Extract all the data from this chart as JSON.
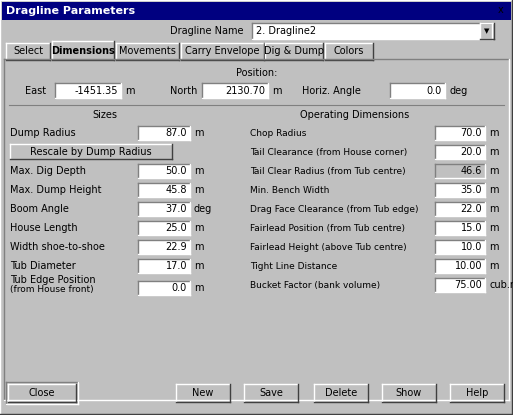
{
  "title": "Dragline Parameters",
  "title_bg": "#000080",
  "title_fg": "#ffffff",
  "bg_color": "#c0c0c0",
  "tab_active": "Dimensions",
  "tabs": [
    "Select",
    "Dimensions",
    "Movements",
    "Carry Envelope",
    "Dig & Dump",
    "Colors"
  ],
  "dragline_name_label": "Dragline Name",
  "dragline_name_value": "2. Dragline2",
  "position_label": "Position:",
  "east_label": "East",
  "east_value": "-1451.35",
  "east_unit": "m",
  "north_label": "North",
  "north_value": "2130.70",
  "north_unit": "m",
  "horiz_label": "Horiz. Angle",
  "horiz_value": "0.0",
  "horiz_unit": "deg",
  "sizes_label": "Sizes",
  "opdim_label": "Operating Dimensions",
  "sizes_rows": [
    {
      "label": "Dump Radius",
      "value": "87.0",
      "unit": "m",
      "is_button": false
    },
    {
      "label": "Rescale by Dump Radius",
      "value": "",
      "unit": "",
      "is_button": true
    },
    {
      "label": "Max. Dig Depth",
      "value": "50.0",
      "unit": "m",
      "is_button": false
    },
    {
      "label": "Max. Dump Height",
      "value": "45.8",
      "unit": "m",
      "is_button": false
    },
    {
      "label": "Boom Angle",
      "value": "37.0",
      "unit": "deg",
      "is_button": false
    },
    {
      "label": "House Length",
      "value": "25.0",
      "unit": "m",
      "is_button": false
    },
    {
      "label": "Width shoe-to-shoe",
      "value": "22.9",
      "unit": "m",
      "is_button": false
    },
    {
      "label": "Tub Diameter",
      "value": "17.0",
      "unit": "m",
      "is_button": false
    },
    {
      "label": "Tub Edge Position",
      "label2": "(from House front)",
      "value": "0.0",
      "unit": "m",
      "is_button": false,
      "two_line": true
    }
  ],
  "opdim_rows": [
    {
      "label": "Chop Radius",
      "value": "70.0",
      "unit": "m",
      "highlighted": false
    },
    {
      "label": "Tail Clearance (from House corner)",
      "value": "20.0",
      "unit": "m",
      "highlighted": false
    },
    {
      "label": "Tail Clear Radius (from Tub centre)",
      "value": "46.6",
      "unit": "m",
      "highlighted": true
    },
    {
      "label": "Min. Bench Width",
      "value": "35.0",
      "unit": "m",
      "highlighted": false
    },
    {
      "label": "Drag Face Clearance (from Tub edge)",
      "value": "22.0",
      "unit": "m",
      "highlighted": false
    },
    {
      "label": "Fairlead Position (from Tub centre)",
      "value": "15.0",
      "unit": "m",
      "highlighted": false
    },
    {
      "label": "Fairlead Height (above Tub centre)",
      "value": "10.0",
      "unit": "m",
      "highlighted": false
    },
    {
      "label": "Tight Line Distance",
      "value": "10.00",
      "unit": "m",
      "highlighted": false
    },
    {
      "label": "Bucket Factor (bank volume)",
      "value": "75.00",
      "unit": "cub.m",
      "highlighted": false
    }
  ],
  "box_bg": "#ffffff",
  "box_highlighted": "#c0c0c0",
  "font_size": 7.0,
  "small_font": 6.5
}
